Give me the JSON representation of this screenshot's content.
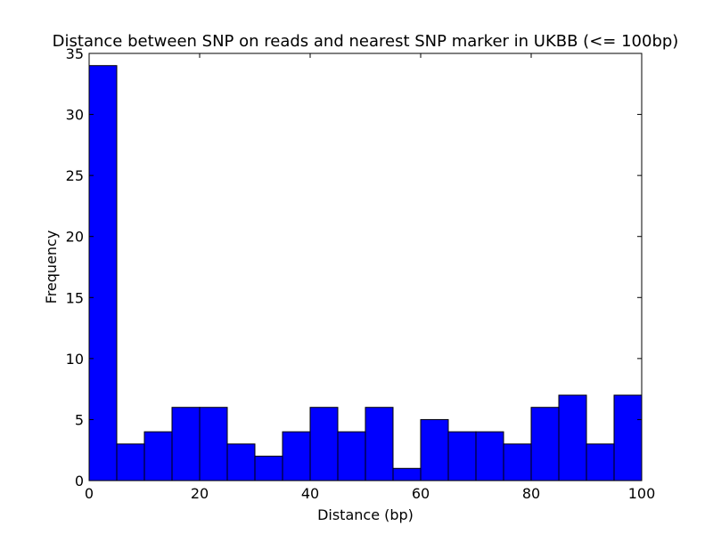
{
  "chart_data": {
    "type": "bar",
    "title": "Distance between SNP on reads and nearest SNP marker in UKBB (<= 100bp)",
    "xlabel": "Distance (bp)",
    "ylabel": "Frequency",
    "xlim": [
      0,
      100
    ],
    "ylim": [
      0,
      35
    ],
    "xticks": [
      0,
      20,
      40,
      60,
      80,
      100
    ],
    "yticks": [
      0,
      5,
      10,
      15,
      20,
      25,
      30,
      35
    ],
    "bin_edges": [
      0,
      5,
      10,
      15,
      20,
      25,
      30,
      35,
      40,
      45,
      50,
      55,
      60,
      65,
      70,
      75,
      80,
      85,
      90,
      95,
      100
    ],
    "values": [
      34,
      3,
      4,
      6,
      6,
      3,
      2,
      4,
      6,
      4,
      6,
      1,
      5,
      4,
      4,
      3,
      6,
      7,
      3,
      7
    ],
    "bar_color": "#0000ff",
    "edge_color": "#000000",
    "grid": false,
    "legend": "none"
  }
}
